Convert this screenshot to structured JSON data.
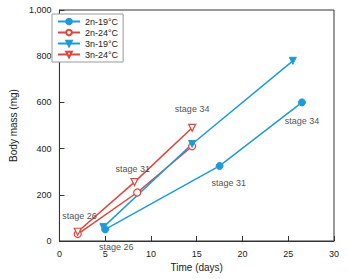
{
  "chart_data": {
    "type": "line",
    "x_label": "Time (days)",
    "y_label": "Body mass (mg)",
    "xlim": [
      0,
      30
    ],
    "xticks": [
      0,
      5,
      10,
      15,
      20,
      25,
      30
    ],
    "ylim": [
      0,
      1000
    ],
    "yticks": [
      0,
      200,
      400,
      600,
      800,
      1000
    ],
    "grid": false,
    "legend": "upper left",
    "series": [
      {
        "name": "2n-19°C",
        "color": "#1e9bd7",
        "marker": "circle",
        "x": [
          5,
          17.5,
          26.5
        ],
        "values": [
          50,
          325,
          600
        ]
      },
      {
        "name": "2n-24°C",
        "color": "#e0443a",
        "marker": "circle_open",
        "x": [
          2,
          8.5,
          14.5
        ],
        "values": [
          30,
          210,
          410
        ]
      },
      {
        "name": "3n-19°C",
        "color": "#1e9bd7",
        "marker": "triangle_down",
        "x": [
          4.8,
          14.5,
          25.5
        ],
        "values": [
          60,
          420,
          780
        ]
      },
      {
        "name": "3n-24°C",
        "color": "#e0443a",
        "marker": "triangle_down_open",
        "x": [
          2,
          8.2,
          14.5
        ],
        "values": [
          40,
          255,
          490
        ]
      }
    ],
    "annotations": [
      {
        "text": "stage 26",
        "x": 2.2,
        "y": 110
      },
      {
        "text": "stage 26",
        "x": 6.2,
        "y": -25
      },
      {
        "text": "stage 31",
        "x": 8,
        "y": 310
      },
      {
        "text": "stage 31",
        "x": 18.5,
        "y": 250
      },
      {
        "text": "stage 34",
        "x": 14.5,
        "y": 570
      },
      {
        "text": "stage 34",
        "x": 26.5,
        "y": 520
      }
    ]
  }
}
